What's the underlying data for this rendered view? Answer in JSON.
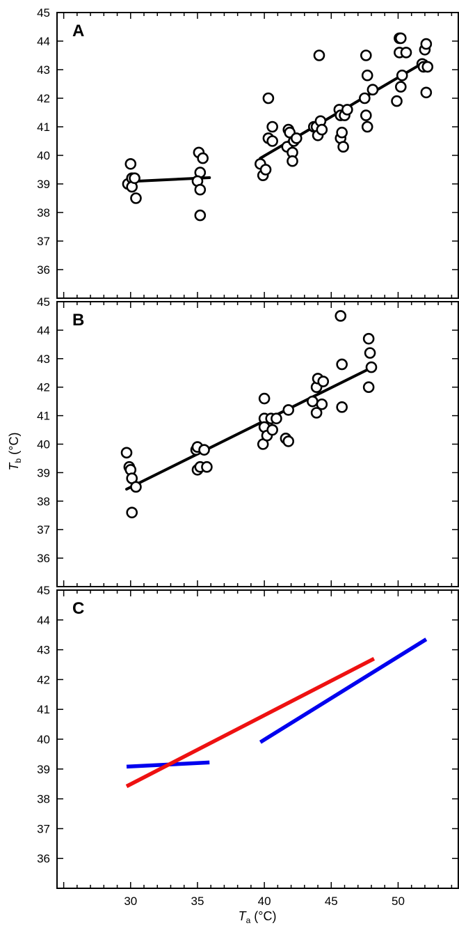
{
  "chart_data": [
    {
      "type": "scatter",
      "panel_label": "A",
      "xlim": [
        24.5,
        54.5
      ],
      "ylim": [
        35,
        45
      ],
      "x_ticks": [
        30,
        35,
        40,
        45,
        50
      ],
      "y_ticks": [
        36,
        37,
        38,
        39,
        40,
        41,
        42,
        43,
        44,
        45
      ],
      "grid": false,
      "points": [
        [
          29.8,
          39.0
        ],
        [
          30.1,
          39.2
        ],
        [
          30.0,
          39.7
        ],
        [
          30.1,
          38.9
        ],
        [
          30.3,
          39.2
        ],
        [
          30.4,
          38.5
        ],
        [
          35.1,
          40.1
        ],
        [
          35.4,
          39.9
        ],
        [
          35.2,
          39.4
        ],
        [
          35.0,
          39.1
        ],
        [
          35.2,
          38.8
        ],
        [
          35.2,
          37.9
        ],
        [
          39.7,
          39.7
        ],
        [
          39.9,
          39.3
        ],
        [
          40.1,
          39.5
        ],
        [
          40.3,
          40.6
        ],
        [
          40.3,
          42.0
        ],
        [
          40.6,
          41.0
        ],
        [
          40.6,
          40.5
        ],
        [
          41.7,
          40.3
        ],
        [
          41.8,
          40.9
        ],
        [
          41.9,
          40.8
        ],
        [
          42.1,
          40.1
        ],
        [
          42.1,
          39.8
        ],
        [
          42.2,
          40.5
        ],
        [
          42.4,
          40.6
        ],
        [
          43.7,
          41.0
        ],
        [
          43.9,
          41.0
        ],
        [
          44.0,
          40.7
        ],
        [
          44.1,
          43.5
        ],
        [
          44.2,
          41.2
        ],
        [
          44.3,
          40.9
        ],
        [
          45.6,
          41.6
        ],
        [
          45.7,
          41.4
        ],
        [
          45.7,
          40.6
        ],
        [
          45.8,
          40.8
        ],
        [
          45.9,
          40.3
        ],
        [
          46.0,
          41.4
        ],
        [
          46.2,
          41.6
        ],
        [
          47.5,
          42.0
        ],
        [
          47.6,
          43.5
        ],
        [
          47.6,
          41.4
        ],
        [
          47.7,
          42.8
        ],
        [
          47.7,
          41.0
        ],
        [
          48.1,
          42.3
        ],
        [
          49.9,
          41.9
        ],
        [
          50.1,
          43.6
        ],
        [
          50.1,
          44.1
        ],
        [
          50.2,
          44.1
        ],
        [
          50.2,
          42.4
        ],
        [
          50.3,
          42.8
        ],
        [
          50.6,
          43.6
        ],
        [
          51.8,
          43.2
        ],
        [
          51.9,
          43.1
        ],
        [
          52.0,
          43.7
        ],
        [
          52.1,
          43.9
        ],
        [
          52.1,
          42.2
        ],
        [
          52.2,
          43.1
        ]
      ],
      "fit_lines": [
        {
          "x": [
            29.7,
            35.9
          ],
          "y": [
            39.08,
            39.22
          ],
          "color": "#000000"
        },
        {
          "x": [
            39.7,
            52.1
          ],
          "y": [
            39.9,
            43.3
          ],
          "color": "#000000"
        }
      ]
    },
    {
      "type": "scatter",
      "panel_label": "B",
      "xlim": [
        24.5,
        54.5
      ],
      "ylim": [
        35,
        45
      ],
      "x_ticks": [
        30,
        35,
        40,
        45,
        50
      ],
      "y_ticks": [
        36,
        37,
        38,
        39,
        40,
        41,
        42,
        43,
        44,
        45
      ],
      "grid": false,
      "ylabel": "T_b (°C)",
      "points": [
        [
          29.7,
          39.7
        ],
        [
          29.9,
          39.2
        ],
        [
          30.0,
          39.1
        ],
        [
          30.1,
          38.8
        ],
        [
          30.1,
          37.6
        ],
        [
          30.4,
          38.5
        ],
        [
          34.9,
          39.8
        ],
        [
          35.0,
          39.9
        ],
        [
          35.0,
          39.1
        ],
        [
          35.2,
          39.2
        ],
        [
          35.5,
          39.8
        ],
        [
          35.7,
          39.2
        ],
        [
          39.9,
          40.0
        ],
        [
          40.0,
          41.6
        ],
        [
          40.0,
          40.9
        ],
        [
          40.0,
          40.6
        ],
        [
          40.2,
          40.3
        ],
        [
          40.5,
          40.9
        ],
        [
          40.6,
          40.5
        ],
        [
          40.9,
          40.9
        ],
        [
          41.6,
          40.2
        ],
        [
          41.8,
          40.1
        ],
        [
          41.8,
          41.2
        ],
        [
          43.6,
          41.5
        ],
        [
          43.9,
          41.1
        ],
        [
          43.9,
          42.0
        ],
        [
          44.0,
          42.3
        ],
        [
          44.3,
          41.4
        ],
        [
          44.4,
          42.2
        ],
        [
          45.7,
          44.5
        ],
        [
          45.8,
          42.8
        ],
        [
          45.8,
          41.3
        ],
        [
          47.8,
          42.0
        ],
        [
          47.8,
          43.7
        ],
        [
          47.9,
          43.2
        ],
        [
          48.0,
          42.7
        ]
      ],
      "fit_lines": [
        {
          "x": [
            29.7,
            48.0
          ],
          "y": [
            38.42,
            42.68
          ],
          "color": "#000000"
        }
      ]
    },
    {
      "type": "line",
      "panel_label": "C",
      "xlim": [
        24.5,
        54.5
      ],
      "ylim": [
        35,
        45
      ],
      "x_ticks": [
        30,
        35,
        40,
        45,
        50
      ],
      "y_ticks": [
        36,
        37,
        38,
        39,
        40,
        41,
        42,
        43,
        44,
        45
      ],
      "grid": false,
      "xlabel": "T_a (°C)",
      "series": [
        {
          "x": [
            29.7,
            35.9
          ],
          "y": [
            39.08,
            39.22
          ],
          "color": "#0000ee"
        },
        {
          "x": [
            39.7,
            52.1
          ],
          "y": [
            39.9,
            43.35
          ],
          "color": "#0000ee"
        },
        {
          "x": [
            29.7,
            48.2
          ],
          "y": [
            38.42,
            42.7
          ],
          "color": "#ee1111"
        }
      ]
    }
  ],
  "axis_titles": {
    "y_main": "T",
    "y_sub": "b",
    "y_unit": " (°C)",
    "x_main": "T",
    "x_sub": "a",
    "x_unit": " (°C)"
  }
}
